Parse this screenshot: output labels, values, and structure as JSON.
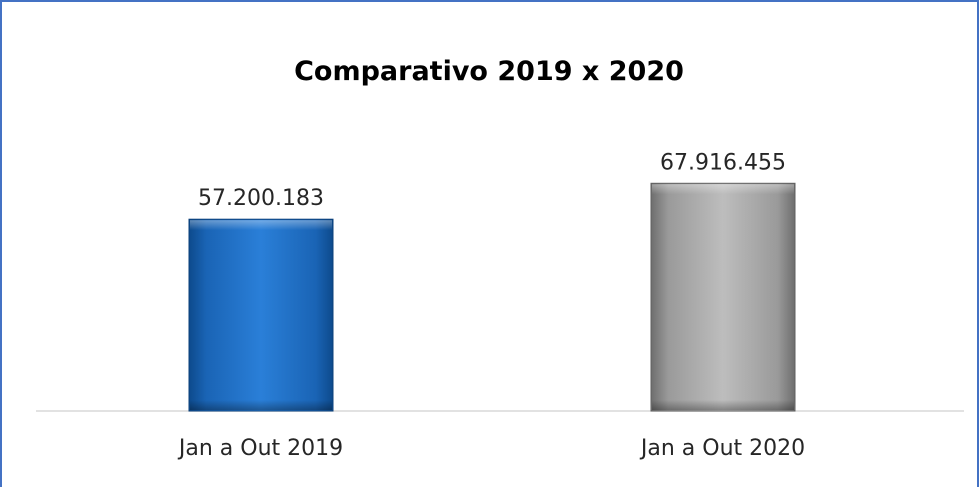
{
  "chart_data": {
    "type": "bar",
    "title": "Comparativo 2019 x 2020",
    "categories": [
      "Jan a Out 2019",
      "Jan a Out 2020"
    ],
    "values": [
      57200183,
      67916455
    ],
    "value_labels": [
      "57.200.183",
      "67.916.455"
    ],
    "xlabel": "",
    "ylabel": "",
    "ylim": [
      0,
      68000000
    ],
    "grid": false,
    "legend": "none",
    "colors": [
      "#1f6fc6",
      "#a6a6a6"
    ]
  }
}
